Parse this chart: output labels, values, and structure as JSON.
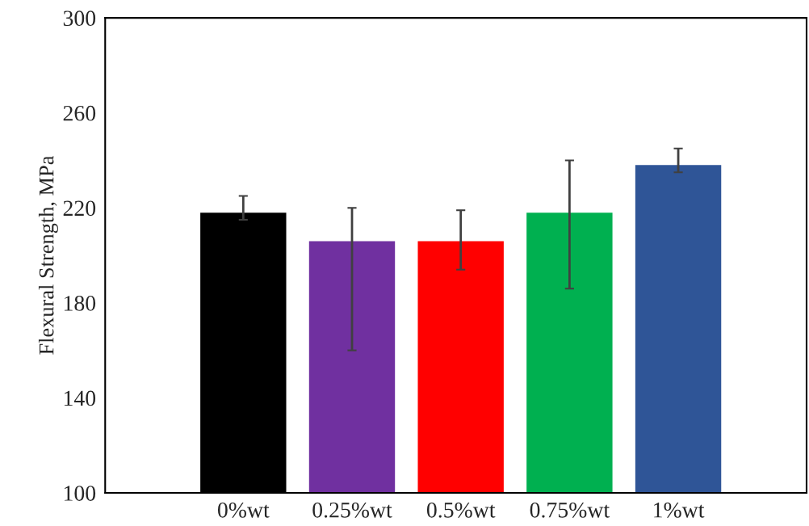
{
  "chart_data": {
    "type": "bar",
    "ylabel": "Flexural Strength, MPa",
    "categories": [
      "0%wt",
      "0.25%wt",
      "0.5%wt",
      "0.75%wt",
      "1%wt"
    ],
    "values": [
      218,
      206,
      206,
      218,
      238
    ],
    "colors": [
      "#000000",
      "#7030a0",
      "#ff0000",
      "#00b050",
      "#2f5597"
    ],
    "errors": [
      [
        215,
        225
      ],
      [
        160,
        220
      ],
      [
        194,
        219
      ],
      [
        186,
        240
      ],
      [
        235,
        245
      ]
    ],
    "ylim": [
      100,
      300
    ],
    "yticks": [
      100,
      140,
      180,
      220,
      260,
      300
    ],
    "grid": false
  }
}
